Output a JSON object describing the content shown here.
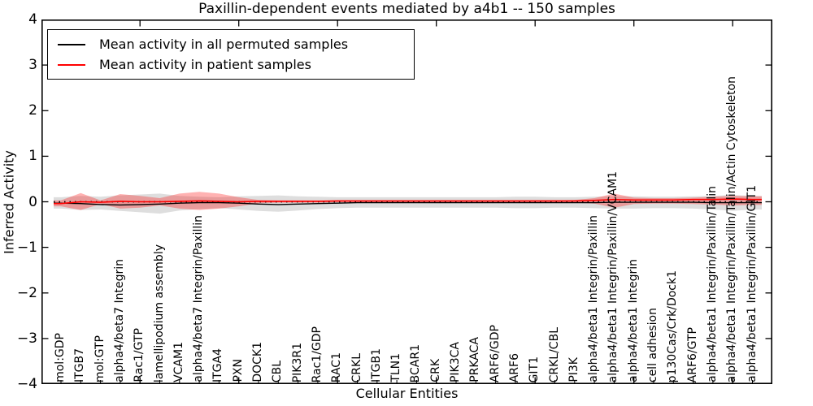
{
  "chart_data": {
    "type": "line",
    "title": "Paxillin-dependent events mediated by a4b1 -- 150 samples",
    "xlabel": "Cellular Entities",
    "ylabel": "Inferred Activity",
    "ylim": [
      -4,
      4
    ],
    "grid": false,
    "legend_position": "upper left",
    "x_major_tick_every": 5,
    "ytick_values": [
      4,
      3,
      2,
      1,
      0,
      -1,
      -2,
      -3,
      -4
    ],
    "ytick_labels": [
      "4",
      "3",
      "2",
      "1",
      "0",
      "−1",
      "−2",
      "−3",
      "−4"
    ],
    "categories": [
      "mol:GDP",
      "ITGB7",
      "mol:GTP",
      "alpha4/beta7 Integrin",
      "Rac1/GTP",
      "lamellipodium assembly",
      "VCAM1",
      "alpha4/beta7 Integrin/Paxillin",
      "ITGA4",
      "PXN",
      "DOCK1",
      "CBL",
      "PIK3R1",
      "Rac1/GDP",
      "RAC1",
      "CRKL",
      "ITGB1",
      "TLN1",
      "BCAR1",
      "CRK",
      "PIK3CA",
      "PRKACA",
      "ARF6/GDP",
      "ARF6",
      "GIT1",
      "CRKL/CBL",
      "PI3K",
      "alpha4/beta1 Integrin/Paxillin",
      "alpha4/beta1 Integrin/Paxillin/VCAM1",
      "alpha4/beta1 Integrin",
      "cell adhesion",
      "p130Cas/Crk/Dock1",
      "ARF6/GTP",
      "alpha4/beta1 Integrin/Paxillin/Talin",
      "alpha4/beta1 Integrin/Paxillin/Talin/Actin Cytoskeleton",
      "alpha4/beta1 Integrin/Paxillin/GIT1"
    ],
    "series": [
      {
        "name": "Mean activity in all permuted samples",
        "color": "#000000",
        "values": [
          -0.03,
          -0.04,
          -0.06,
          -0.07,
          -0.06,
          -0.05,
          -0.03,
          -0.02,
          -0.02,
          -0.03,
          -0.05,
          -0.06,
          -0.05,
          -0.04,
          -0.03,
          -0.02,
          -0.02,
          -0.02,
          -0.02,
          -0.02,
          -0.02,
          -0.02,
          -0.02,
          -0.02,
          -0.02,
          -0.02,
          -0.02,
          -0.02,
          -0.01,
          -0.01,
          -0.01,
          -0.01,
          -0.01,
          -0.02,
          -0.02,
          -0.02
        ]
      },
      {
        "name": "Mean activity in patient samples",
        "color": "#ff0000",
        "values": [
          -0.04,
          0.0,
          -0.01,
          0.01,
          0.0,
          0.0,
          0.01,
          0.02,
          0.01,
          0.0,
          0.01,
          0.01,
          0.01,
          0.01,
          0.02,
          0.02,
          0.02,
          0.02,
          0.02,
          0.02,
          0.02,
          0.02,
          0.02,
          0.02,
          0.02,
          0.02,
          0.02,
          0.03,
          0.05,
          0.04,
          0.04,
          0.04,
          0.05,
          0.05,
          0.06,
          0.05
        ]
      }
    ],
    "bands": [
      {
        "name": "permuted-samples-spread",
        "fill": "rgba(0,0,0,0.13)",
        "upper": [
          0.1,
          0.13,
          0.11,
          0.14,
          0.16,
          0.18,
          0.13,
          0.11,
          0.1,
          0.12,
          0.13,
          0.14,
          0.12,
          0.11,
          0.1,
          0.1,
          0.1,
          0.1,
          0.1,
          0.1,
          0.1,
          0.1,
          0.1,
          0.11,
          0.11,
          0.1,
          0.1,
          0.11,
          0.12,
          0.12,
          0.11,
          0.11,
          0.12,
          0.13,
          0.15,
          0.13
        ],
        "lower": [
          -0.15,
          -0.18,
          -0.17,
          -0.2,
          -0.23,
          -0.26,
          -0.19,
          -0.16,
          -0.14,
          -0.17,
          -0.2,
          -0.22,
          -0.19,
          -0.16,
          -0.14,
          -0.13,
          -0.13,
          -0.13,
          -0.13,
          -0.13,
          -0.13,
          -0.13,
          -0.13,
          -0.14,
          -0.14,
          -0.13,
          -0.13,
          -0.14,
          -0.15,
          -0.15,
          -0.14,
          -0.14,
          -0.15,
          -0.17,
          -0.2,
          -0.17
        ]
      },
      {
        "name": "patient-samples-spread",
        "fill": "rgba(255,0,0,0.30)",
        "upper": [
          0.03,
          0.19,
          0.03,
          0.17,
          0.13,
          0.08,
          0.18,
          0.22,
          0.18,
          0.1,
          0.04,
          0.03,
          0.03,
          0.03,
          0.03,
          0.03,
          0.03,
          0.03,
          0.03,
          0.03,
          0.03,
          0.03,
          0.03,
          0.03,
          0.03,
          0.03,
          0.04,
          0.08,
          0.18,
          0.09,
          0.08,
          0.08,
          0.09,
          0.11,
          0.13,
          0.12
        ],
        "lower": [
          -0.1,
          -0.18,
          -0.05,
          -0.15,
          -0.13,
          -0.08,
          -0.15,
          -0.18,
          -0.15,
          -0.1,
          -0.03,
          -0.02,
          -0.02,
          -0.02,
          -0.01,
          -0.01,
          -0.01,
          -0.01,
          -0.01,
          -0.01,
          -0.01,
          -0.01,
          -0.01,
          -0.01,
          -0.01,
          -0.01,
          -0.02,
          -0.04,
          -0.13,
          -0.05,
          -0.04,
          -0.04,
          -0.05,
          -0.06,
          -0.08,
          -0.07
        ]
      }
    ],
    "zero_line_value": 0,
    "legend": {
      "entries": [
        {
          "label": "Mean activity in all permuted samples",
          "color": "#000000"
        },
        {
          "label": "Mean activity in patient samples",
          "color": "#ff0000"
        }
      ]
    }
  }
}
